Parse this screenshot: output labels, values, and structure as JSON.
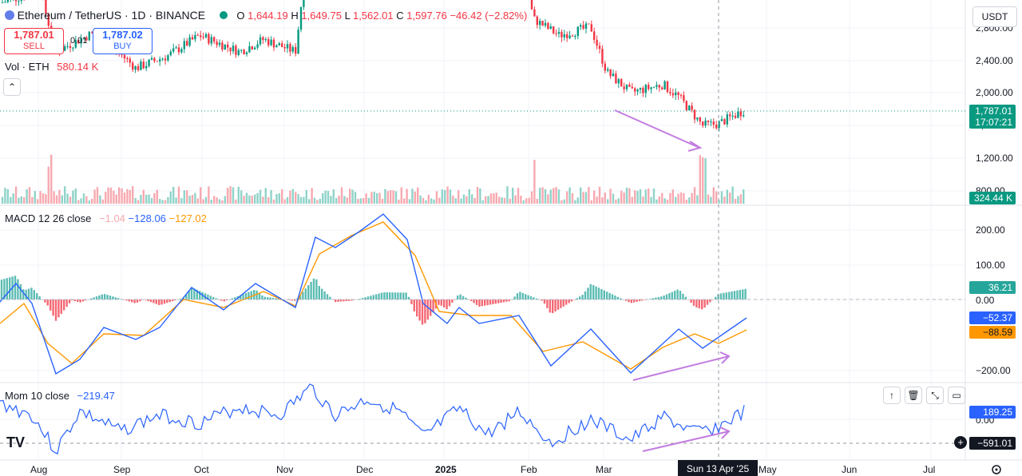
{
  "header": {
    "symbol": "Ethereum / TetherUS · 1D · BINANCE",
    "o_label": "O",
    "o_value": "1,644.19",
    "h_label": "H",
    "h_value": "1,649.75",
    "l_label": "L",
    "l_value": "1,562.01",
    "c_label": "C",
    "c_value": "1,597.76",
    "change": "−46.42 (−2.82%)"
  },
  "trade": {
    "sell_price": "1,787.01",
    "sell_label": "SELL",
    "spread": "0.01",
    "buy_price": "1,787.02",
    "buy_label": "BUY"
  },
  "volume_legend": {
    "label": "Vol · ETH",
    "value": "580.14 K"
  },
  "currency": "USDT",
  "price_axis": {
    "ticks": [
      "2,800.00",
      "2,400.00",
      "2,000.00",
      "1,600.00",
      "1,200.00",
      "800.00"
    ],
    "last_price": "1,787.01",
    "countdown": "17:07:21",
    "volume_tag": "324.44 K"
  },
  "macd": {
    "legend": "MACD 12 26 close",
    "hist": "−1.04",
    "macd": "−128.06",
    "signal": "−127.02",
    "ticks": [
      "200.00",
      "100.00",
      "0.00",
      "−200.00"
    ],
    "tag_hist": "36.21",
    "tag_macd": "−52.37",
    "tag_signal": "−88.59"
  },
  "mom": {
    "legend": "Mom 10 close",
    "value": "−219.47",
    "ticks": [
      "0.00"
    ],
    "tag_mom": "189.25",
    "tag_cross": "−591.01"
  },
  "time_axis": {
    "labels": [
      "Aug",
      "Sep",
      "Oct",
      "Nov",
      "Dec",
      "2025",
      "Feb",
      "Mar",
      "May",
      "Jun",
      "Jul"
    ],
    "crosshair_label": "Sun 13 Apr '25"
  },
  "colors": {
    "up": "#089981",
    "down": "#f23645",
    "macd": "#2962ff",
    "signal": "#ff9800",
    "arrow": "#c27ce0"
  },
  "chart_data": {
    "type": "candlestick",
    "title": "Ethereum / TetherUS · 1D · BINANCE",
    "y_range": [
      1200,
      2800
    ],
    "approx_close_path": [
      {
        "date": "Aug",
        "close": 3200
      },
      {
        "date": "Sep",
        "close": 2450
      },
      {
        "date": "Oct",
        "close": 2600
      },
      {
        "date": "Nov",
        "close": 2520
      },
      {
        "date": "Dec",
        "close": 3700
      },
      {
        "date": "2025",
        "close": 3350
      },
      {
        "date": "Feb",
        "close": 2650
      },
      {
        "date": "Mar",
        "close": 2150
      },
      {
        "date": "Apr",
        "close": 1600
      },
      {
        "date": "Apr 13",
        "close": 1787
      }
    ],
    "indicators": [
      "Vol · ETH",
      "MACD 12 26 close",
      "Mom 10 close"
    ]
  }
}
